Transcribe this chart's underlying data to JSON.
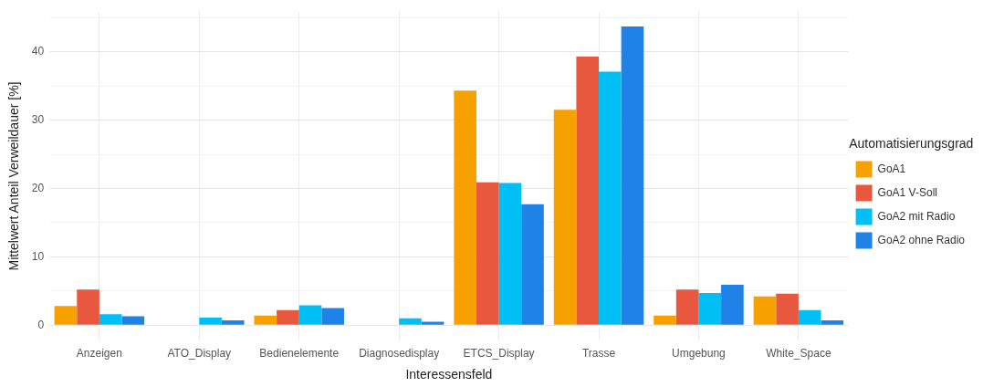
{
  "chart_data": {
    "type": "bar",
    "xlabel": "Interessensfeld",
    "ylabel": "Mittelwert Anteil Verweildauer [%]",
    "legend_title": "Automatisierungsgrad",
    "categories": [
      "Anzeigen",
      "ATO_Display",
      "Bedienelemente",
      "Diagnosedisplay",
      "ETCS_Display",
      "Trasse",
      "Umgebung",
      "White_Space"
    ],
    "series": [
      {
        "name": "GoA1",
        "color": "#f7a100",
        "values": [
          2.8,
          null,
          1.4,
          null,
          34.3,
          31.5,
          1.4,
          4.2
        ]
      },
      {
        "name": "GoA1 V-Soll",
        "color": "#e8583f",
        "values": [
          5.2,
          null,
          2.2,
          null,
          20.9,
          39.3,
          5.2,
          4.6
        ]
      },
      {
        "name": "GoA2 mit Radio",
        "color": "#00bff5",
        "values": [
          1.6,
          1.1,
          2.9,
          1.0,
          20.8,
          37.1,
          4.7,
          2.2
        ]
      },
      {
        "name": "GoA2 ohne Radio",
        "color": "#1f82e6",
        "values": [
          1.3,
          0.7,
          2.5,
          0.5,
          17.7,
          43.7,
          5.9,
          0.7
        ]
      }
    ],
    "ylim": [
      -2.2,
      45.8
    ],
    "yticks": [
      0,
      {
        "value": 5,
        "label": null
      },
      10,
      {
        "value": 15,
        "label": null
      },
      20,
      {
        "value": 25,
        "label": null
      },
      30,
      {
        "value": 35,
        "label": null
      },
      40,
      {
        "value": 45,
        "label": null
      }
    ],
    "grid": true,
    "legend": "right"
  }
}
